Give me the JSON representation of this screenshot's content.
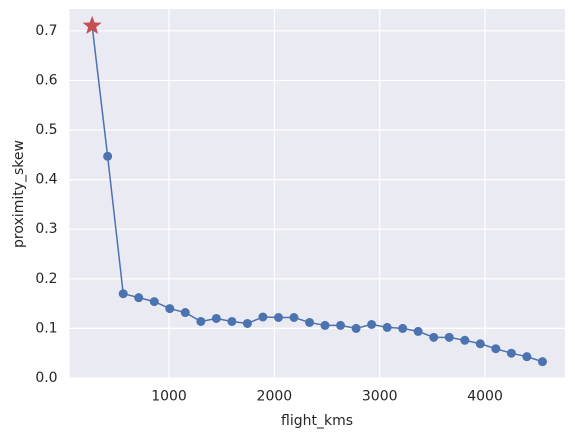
{
  "chart_data": {
    "type": "line",
    "x_label": "flight_kms",
    "y_label": "proximity_skew",
    "x": [
      270,
      417,
      565,
      712,
      860,
      1007,
      1154,
      1302,
      1449,
      1597,
      1744,
      1891,
      2039,
      2186,
      2334,
      2481,
      2628,
      2776,
      2923,
      3071,
      3218,
      3365,
      3513,
      3660,
      3808,
      3955,
      4102,
      4250,
      4397,
      4545
    ],
    "series": [
      {
        "color": "#4c72b0",
        "values": [
          0.71,
          0.447,
          0.17,
          0.162,
          0.154,
          0.14,
          0.132,
          0.114,
          0.12,
          0.114,
          0.11,
          0.123,
          0.122,
          0.122,
          0.112,
          0.106,
          0.106,
          0.1,
          0.108,
          0.102,
          0.1,
          0.094,
          0.082,
          0.082,
          0.076,
          0.069,
          0.059,
          0.05,
          0.043,
          0.033
        ]
      }
    ],
    "highlight": {
      "index": 0,
      "color": "#c44e52",
      "marker": "star"
    },
    "xlim": [
      56,
      4759
    ],
    "ylim": [
      -0.001,
      0.744
    ],
    "xticks": [
      1000,
      2000,
      3000,
      4000
    ],
    "yticks": [
      {
        "value": 0,
        "label": "0.0"
      },
      0.1,
      0.2,
      0.3,
      0.4,
      0.5,
      0.6,
      0.7
    ],
    "grid": true,
    "background": "#eaeaf2"
  }
}
